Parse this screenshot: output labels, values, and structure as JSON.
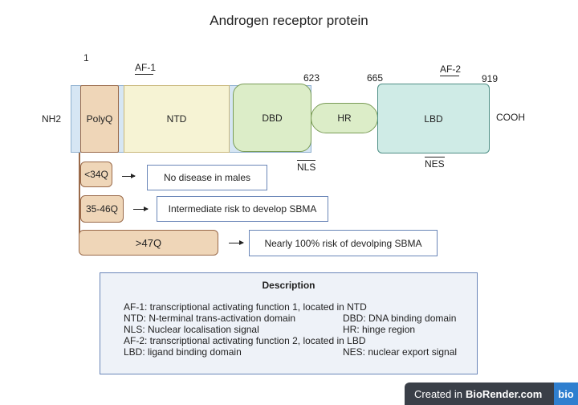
{
  "title": "Androgen receptor protein",
  "positions": {
    "start": "1",
    "p623": "623",
    "p665": "665",
    "p919": "919"
  },
  "termini": {
    "n": "NH2",
    "c": "COOH"
  },
  "functions": {
    "af1": "AF-1",
    "af2": "AF-2"
  },
  "signals": {
    "nls": "NLS",
    "nes": "NES"
  },
  "domains": {
    "polyq": "PolyQ",
    "ntd": "NTD",
    "dbd": "DBD",
    "hr": "HR",
    "lbd": "LBD"
  },
  "repeats": [
    {
      "label": "<34Q",
      "outcome": "No disease in males"
    },
    {
      "label": "35-46Q",
      "outcome": "Intermediate risk to develop SBMA"
    },
    {
      "label": ">47Q",
      "outcome": "Nearly 100% risk of devolping SBMA"
    }
  ],
  "description": {
    "title": "Description",
    "lines": [
      "AF-1: transcriptional activating function 1, located in NTD",
      "NTD: N-terminal trans-activation domain",
      "DBD: DNA binding domain",
      "NLS: Nuclear localisation signal",
      "HR: hinge region",
      "AF-2: transcriptional activating function 2, located in LBD",
      "LBD: ligand binding domain",
      "NES: nuclear export signal"
    ]
  },
  "footer": {
    "prefix": "Created in",
    "brand": "BioRender.com",
    "logo": "bio"
  },
  "colors": {
    "backbone": "#d6e6f4",
    "polyq": "#efd6b8",
    "ntd": "#f6f3d4",
    "dbd": "#dcedc8",
    "lbd": "#cfebe6",
    "outline_blue": "#6a86b8"
  }
}
